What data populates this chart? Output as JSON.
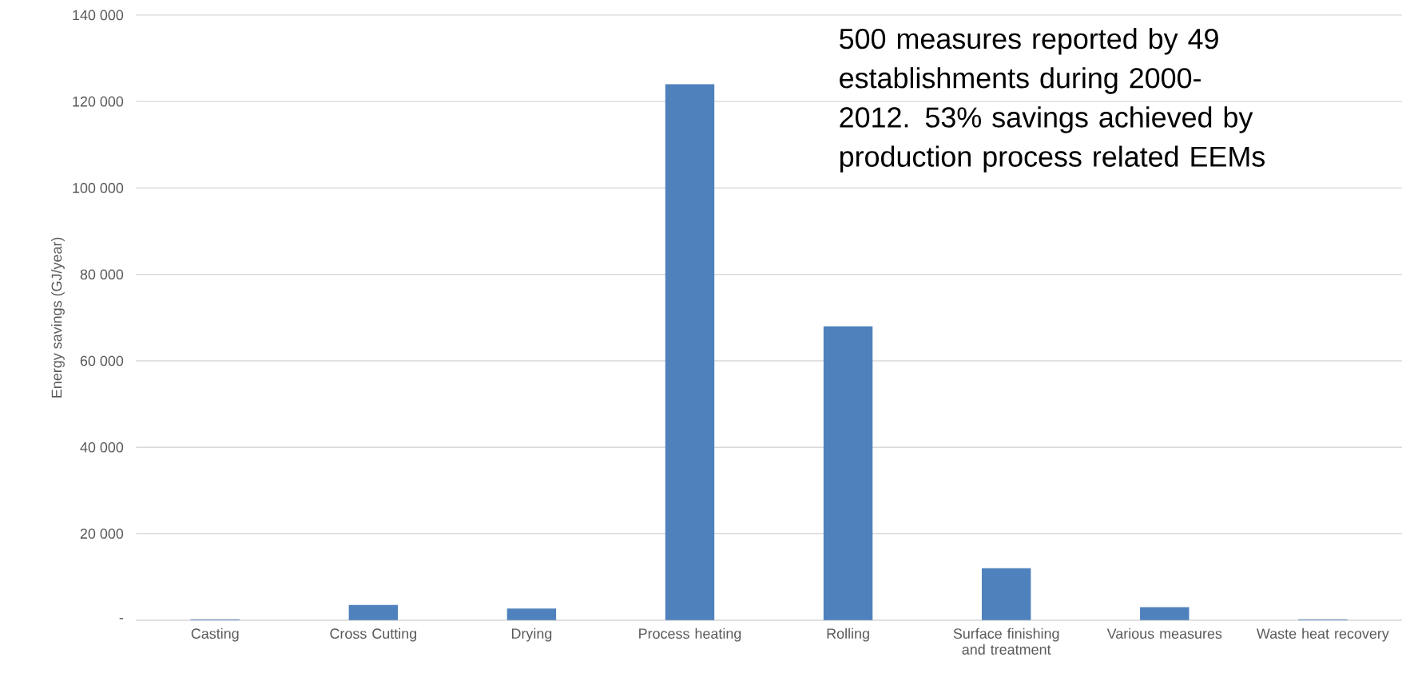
{
  "chart_data": {
    "type": "bar",
    "ylabel": "Energy savings (GJ/year)",
    "categories": [
      "Casting",
      "Cross Cutting",
      "Drying",
      "Process heating",
      "Rolling",
      "Surface finishing and treatment",
      "Various measures",
      "Waste heat recovery"
    ],
    "values": [
      200,
      3500,
      2700,
      124000,
      68000,
      12000,
      3000,
      200
    ],
    "color": "#4f81bd",
    "ylim": [
      0,
      140000
    ],
    "yticks": [
      {
        "value": 0,
        "label": "-"
      },
      {
        "value": 20000,
        "label": "20 000"
      },
      {
        "value": 40000,
        "label": "40 000"
      },
      {
        "value": 60000,
        "label": "60 000"
      },
      {
        "value": 80000,
        "label": "80 000"
      },
      {
        "value": 100000,
        "label": "100 000"
      },
      {
        "value": 120000,
        "label": "120 000"
      },
      {
        "value": 140000,
        "label": "140 000"
      }
    ],
    "grid": "y",
    "annotations": [
      "500 measures reported by 49 establishments during 2000-2012. 53% savings achieved by production process related EEMs"
    ]
  }
}
